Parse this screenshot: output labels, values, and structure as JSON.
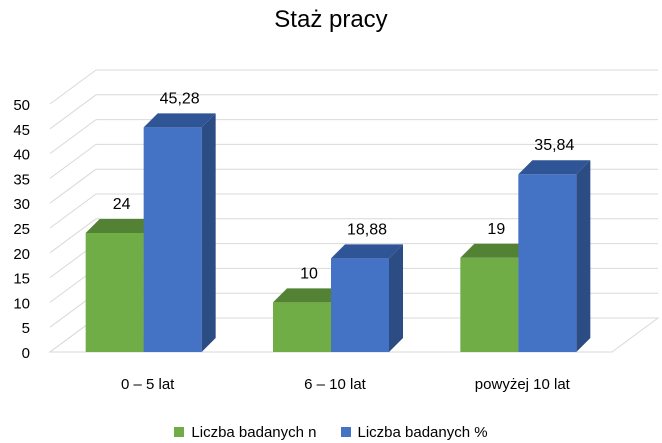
{
  "chart_data": {
    "type": "bar",
    "title": "Staż pracy",
    "categories": [
      "0 – 5 lat",
      "6 – 10 lat",
      "powyżej 10 lat"
    ],
    "series": [
      {
        "name": "Liczba badanych n",
        "values": [
          24,
          10,
          19
        ],
        "labels": [
          "24",
          "10",
          "19"
        ],
        "color": "#70AD47",
        "top_color": "#548235",
        "side_color": "#4E7A32"
      },
      {
        "name": "Liczba badanych %",
        "values": [
          45.28,
          18.88,
          35.84
        ],
        "labels": [
          "45,28",
          "18,88",
          "35,84"
        ],
        "color": "#4472C4",
        "top_color": "#2F5597",
        "side_color": "#2C4C84"
      }
    ],
    "ylim": [
      0,
      50
    ],
    "yticks": [
      0,
      5,
      10,
      15,
      20,
      25,
      30,
      35,
      40,
      45,
      50
    ],
    "grid": true,
    "three_d": true,
    "legend_position": "bottom"
  }
}
